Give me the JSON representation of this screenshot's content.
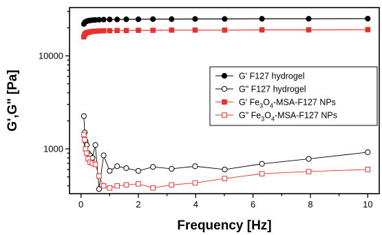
{
  "chart_data": {
    "type": "line",
    "xlabel": "Frequency [Hz]",
    "ylabel": "G',G\" [Pa]",
    "xlim": [
      -0.4,
      10.4
    ],
    "ylim": [
      330,
      33000
    ],
    "yscale": "log",
    "xticks": [
      0,
      2,
      4,
      6,
      8,
      10
    ],
    "yticks": [
      1000,
      10000
    ],
    "legend_position": "center-right",
    "x": [
      0.1,
      0.13,
      0.16,
      0.2,
      0.25,
      0.32,
      0.4,
      0.5,
      0.63,
      0.79,
      1.0,
      1.26,
      1.58,
      2.0,
      2.51,
      3.16,
      3.98,
      5.01,
      6.31,
      7.94,
      10.0
    ],
    "series": [
      {
        "name": "G' F127 hydrogel",
        "color": "#000000",
        "marker": "circle",
        "filled": true,
        "values": [
          22000,
          22800,
          23200,
          23500,
          23800,
          24000,
          24200,
          24300,
          24400,
          24500,
          24600,
          24600,
          24700,
          24700,
          24800,
          24800,
          24900,
          24900,
          25000,
          25000,
          25100
        ]
      },
      {
        "name": "G\" F127 hydrogel",
        "color": "#000000",
        "marker": "circle",
        "filled": false,
        "values": [
          2250,
          1500,
          1200,
          1100,
          900,
          850,
          800,
          1100,
          370,
          850,
          580,
          650,
          620,
          580,
          640,
          610,
          650,
          600,
          690,
          780,
          920
        ]
      },
      {
        "name": "G' Fe3O4-MSA-F127 NPs",
        "label_parts": [
          "G' Fe",
          "3",
          "O",
          "4",
          "-MSA-F127 NPs"
        ],
        "color": "#e5322d",
        "marker": "square",
        "filled": true,
        "values": [
          16000,
          17000,
          17400,
          17700,
          17900,
          18100,
          18300,
          18400,
          18500,
          18600,
          18600,
          18700,
          18700,
          18800,
          18800,
          18900,
          18900,
          18900,
          19000,
          19000,
          19100
        ]
      },
      {
        "name": "G\" Fe3O4-MSA-F127 NPs",
        "label_parts": [
          "G\" Fe",
          "3",
          "O",
          "4",
          "-MSA-F127 NPs"
        ],
        "color": "#e5322d",
        "marker": "square",
        "filled": false,
        "values": [
          1420,
          1250,
          1000,
          900,
          780,
          720,
          700,
          680,
          510,
          400,
          380,
          400,
          410,
          420,
          380,
          410,
          430,
          480,
          540,
          570,
          600
        ]
      }
    ]
  }
}
